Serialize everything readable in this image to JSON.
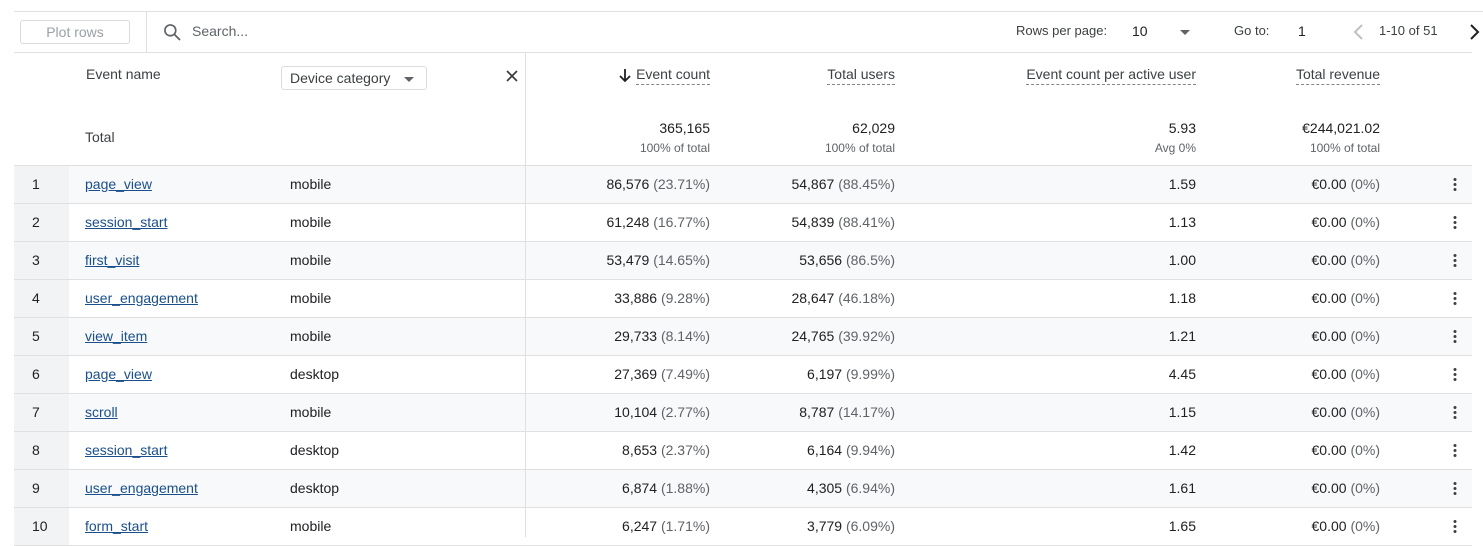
{
  "toolbar": {
    "plot_rows_label": "Plot rows",
    "search_placeholder": "Search...",
    "rows_per_page_label": "Rows per page:",
    "rows_per_page_value": "10",
    "goto_label": "Go to:",
    "goto_value": "1",
    "page_range": "1-10 of 51"
  },
  "columns": {
    "event_name": "Event name",
    "dimension": "Device category",
    "event_count": "Event count",
    "total_users": "Total users",
    "per_user": "Event count per active user",
    "revenue": "Total revenue"
  },
  "totals": {
    "label": "Total",
    "event_count": "365,165",
    "event_count_sub": "100% of total",
    "total_users": "62,029",
    "total_users_sub": "100% of total",
    "per_user": "5.93",
    "per_user_sub": "Avg 0%",
    "revenue": "€244,021.02",
    "revenue_sub": "100% of total"
  },
  "rows": [
    {
      "idx": "1",
      "event": "page_view",
      "device": "mobile",
      "count": "86,576",
      "count_pct": "(23.71%)",
      "users": "54,867",
      "users_pct": "(88.45%)",
      "per_user": "1.59",
      "revenue": "€0.00",
      "revenue_pct": "(0%)"
    },
    {
      "idx": "2",
      "event": "session_start",
      "device": "mobile",
      "count": "61,248",
      "count_pct": "(16.77%)",
      "users": "54,839",
      "users_pct": "(88.41%)",
      "per_user": "1.13",
      "revenue": "€0.00",
      "revenue_pct": "(0%)"
    },
    {
      "idx": "3",
      "event": "first_visit",
      "device": "mobile",
      "count": "53,479",
      "count_pct": "(14.65%)",
      "users": "53,656",
      "users_pct": "(86.5%)",
      "per_user": "1.00",
      "revenue": "€0.00",
      "revenue_pct": "(0%)"
    },
    {
      "idx": "4",
      "event": "user_engagement",
      "device": "mobile",
      "count": "33,886",
      "count_pct": "(9.28%)",
      "users": "28,647",
      "users_pct": "(46.18%)",
      "per_user": "1.18",
      "revenue": "€0.00",
      "revenue_pct": "(0%)"
    },
    {
      "idx": "5",
      "event": "view_item",
      "device": "mobile",
      "count": "29,733",
      "count_pct": "(8.14%)",
      "users": "24,765",
      "users_pct": "(39.92%)",
      "per_user": "1.21",
      "revenue": "€0.00",
      "revenue_pct": "(0%)"
    },
    {
      "idx": "6",
      "event": "page_view",
      "device": "desktop",
      "count": "27,369",
      "count_pct": "(7.49%)",
      "users": "6,197",
      "users_pct": "(9.99%)",
      "per_user": "4.45",
      "revenue": "€0.00",
      "revenue_pct": "(0%)"
    },
    {
      "idx": "7",
      "event": "scroll",
      "device": "mobile",
      "count": "10,104",
      "count_pct": "(2.77%)",
      "users": "8,787",
      "users_pct": "(14.17%)",
      "per_user": "1.15",
      "revenue": "€0.00",
      "revenue_pct": "(0%)"
    },
    {
      "idx": "8",
      "event": "session_start",
      "device": "desktop",
      "count": "8,653",
      "count_pct": "(2.37%)",
      "users": "6,164",
      "users_pct": "(9.94%)",
      "per_user": "1.42",
      "revenue": "€0.00",
      "revenue_pct": "(0%)"
    },
    {
      "idx": "9",
      "event": "user_engagement",
      "device": "desktop",
      "count": "6,874",
      "count_pct": "(1.88%)",
      "users": "4,305",
      "users_pct": "(6.94%)",
      "per_user": "1.61",
      "revenue": "€0.00",
      "revenue_pct": "(0%)"
    },
    {
      "idx": "10",
      "event": "form_start",
      "device": "mobile",
      "count": "6,247",
      "count_pct": "(1.71%)",
      "users": "3,779",
      "users_pct": "(6.09%)",
      "per_user": "1.65",
      "revenue": "€0.00",
      "revenue_pct": "(0%)"
    }
  ],
  "colors": {
    "link": "#1a4f8b",
    "index_bg": "#f1f3f4",
    "stripe": "#f8f9fa"
  },
  "icons": {
    "search": "search-icon",
    "prev": "chevron-left-icon",
    "next": "chevron-right-icon",
    "sort": "arrow-down-icon",
    "close": "close-icon",
    "more": "more-vert-icon"
  }
}
